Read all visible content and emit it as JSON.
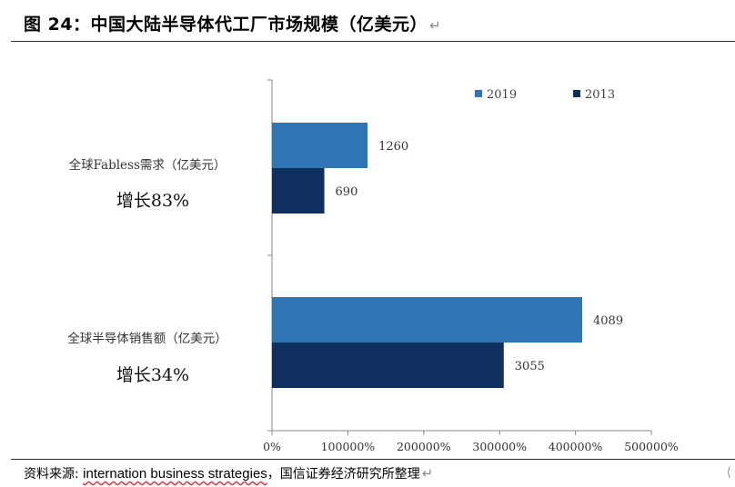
{
  "header": {
    "title": "图 24：中国大陆半导体代工厂市场规模（亿美元）",
    "return_mark": "↵"
  },
  "footer": {
    "source_prefix": "资料来源: ",
    "source_english": "internation business strategies",
    "source_suffix": "，国信证券经济研究所整理",
    "return_mark": "↵",
    "corner_mark": "⟨"
  },
  "colors": {
    "series_2019": "#2e75b6",
    "series_2013": "#0f2f5e",
    "axis": "#888888"
  },
  "chart_data": {
    "type": "bar",
    "orientation": "horizontal",
    "title": "",
    "xlabel": "",
    "ylabel": "",
    "categories": [
      {
        "name": "全球Fabless需求（亿美元）",
        "growth": "增长83%"
      },
      {
        "name": "全球半导体销售额（亿美元）",
        "growth": "增长34%"
      }
    ],
    "series": [
      {
        "name": "2019",
        "values": [
          1260,
          4089
        ]
      },
      {
        "name": "2013",
        "values": [
          690,
          3055
        ]
      }
    ],
    "xlim": [
      0,
      5000
    ],
    "x_ticks": [
      "0%",
      "100000%",
      "200000%",
      "300000%",
      "400000%",
      "500000%"
    ],
    "legend_position": "top-right",
    "grid": false
  }
}
